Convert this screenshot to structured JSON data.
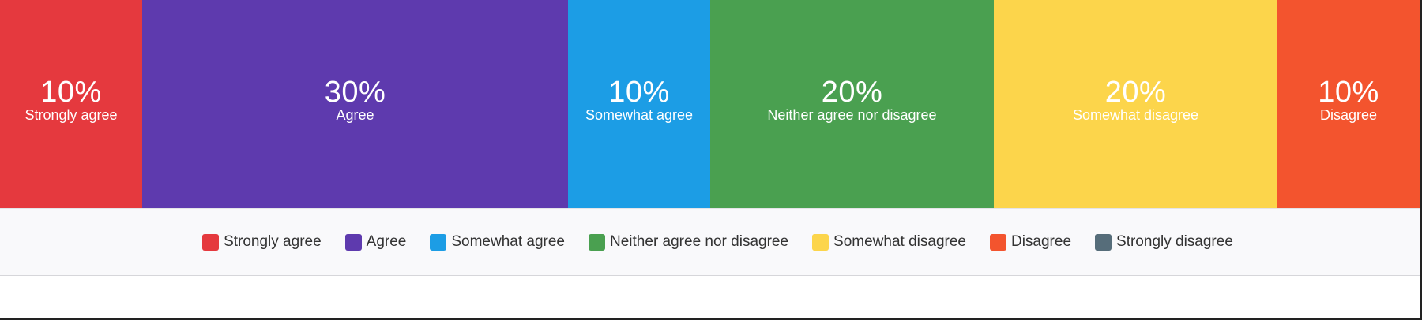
{
  "chart_data": {
    "type": "bar",
    "orientation": "horizontal-stacked-100",
    "categories": [
      "Strongly agree",
      "Agree",
      "Somewhat agree",
      "Neither agree nor disagree",
      "Somewhat disagree",
      "Disagree"
    ],
    "values": [
      10,
      30,
      10,
      20,
      20,
      10
    ],
    "value_labels": [
      "10%",
      "30%",
      "10%",
      "20%",
      "20%",
      "10%"
    ],
    "colors": [
      "#e5393e",
      "#5e3aae",
      "#1c9de5",
      "#4aa050",
      "#fcd54b",
      "#f3542e"
    ],
    "legend": {
      "placement": "bottom",
      "entries": [
        {
          "name": "Strongly agree",
          "color": "#e5393e"
        },
        {
          "name": "Agree",
          "color": "#5e3aae"
        },
        {
          "name": "Somewhat agree",
          "color": "#1c9de5"
        },
        {
          "name": "Neither agree nor disagree",
          "color": "#4aa050"
        },
        {
          "name": "Somewhat disagree",
          "color": "#fcd54b"
        },
        {
          "name": "Disagree",
          "color": "#f3542e"
        },
        {
          "name": "Strongly disagree",
          "color": "#566d7a"
        }
      ]
    },
    "unit": "%",
    "total": 100
  }
}
